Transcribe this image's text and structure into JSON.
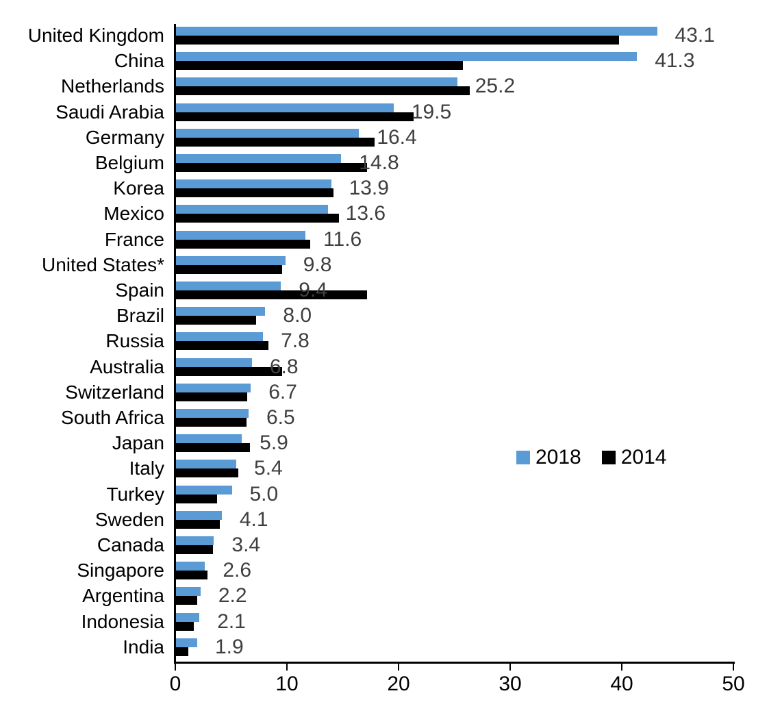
{
  "chart_data": {
    "type": "bar",
    "orientation": "horizontal",
    "title": "",
    "categories": [
      "United Kingdom",
      "China",
      "Netherlands",
      "Saudi Arabia",
      "Germany",
      "Belgium",
      "Korea",
      "Mexico",
      "France",
      "United States*",
      "Spain",
      "Brazil",
      "Russia",
      "Australia",
      "Switzerland",
      "South Africa",
      "Japan",
      "Italy",
      "Turkey",
      "Sweden",
      "Canada",
      "Singapore",
      "Argentina",
      "Indonesia",
      "India"
    ],
    "series": [
      {
        "name": "2018",
        "color": "#5B9BD5",
        "values": [
          43.1,
          41.3,
          25.2,
          19.5,
          16.4,
          14.8,
          13.9,
          13.6,
          11.6,
          9.8,
          9.4,
          8.0,
          7.8,
          6.8,
          6.7,
          6.5,
          5.9,
          5.4,
          5.0,
          4.1,
          3.4,
          2.6,
          2.2,
          2.1,
          1.9
        ]
      },
      {
        "name": "2014",
        "color": "#000000",
        "values_estimated_from_pixels": true,
        "values": [
          39.7,
          25.7,
          26.3,
          21.3,
          17.8,
          17.1,
          14.1,
          14.6,
          12.0,
          9.5,
          17.1,
          7.2,
          8.3,
          9.5,
          6.4,
          6.3,
          6.6,
          5.6,
          3.7,
          3.9,
          3.3,
          2.8,
          1.9,
          1.6,
          1.1
        ]
      }
    ],
    "value_labels": [
      "43.1",
      "41.3",
      "25.2",
      "19.5",
      "16.4",
      "14.8",
      "13.9",
      "13.6",
      "11.6",
      "9.8",
      "9.4",
      "8.0",
      "7.8",
      "6.8",
      "6.7",
      "6.5",
      "5.9",
      "5.4",
      "5.0",
      "4.1",
      "3.4",
      "2.6",
      "2.2",
      "2.1",
      "1.9"
    ],
    "value_labels_series": "2018",
    "xlim": [
      0,
      50
    ],
    "x_ticks": [
      "0",
      "10",
      "20",
      "30",
      "40",
      "50"
    ],
    "grid": "off",
    "legend_position": "middle-right"
  },
  "legend": {
    "items": [
      {
        "label": "2018",
        "color": "#5B9BD5"
      },
      {
        "label": "2014",
        "color": "#000000"
      }
    ]
  },
  "colors": {
    "bar_2018": "#5B9BD5",
    "bar_2014": "#000000",
    "value_label": "#3f3f3f",
    "axis": "#000000",
    "background": "#ffffff"
  }
}
